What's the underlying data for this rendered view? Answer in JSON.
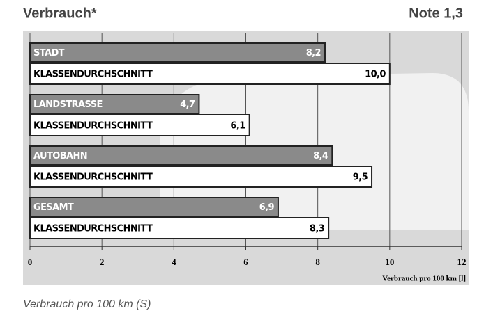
{
  "chart_data": {
    "type": "bar",
    "orientation": "horizontal",
    "title": "Verbrauch*",
    "note": "Note 1,3",
    "categories": [
      "STADT",
      "LANDSTRASSE",
      "AUTOBAHN",
      "GESAMT"
    ],
    "series": [
      {
        "color": "#8a8a8a",
        "values": [
          8.2,
          4.7,
          8.4,
          6.9
        ],
        "value_labels": [
          "8,2",
          "4,7",
          "8,4",
          "6,9"
        ]
      },
      {
        "name": "KLASSENDURCHSCHNITT",
        "color": "#ffffff",
        "values": [
          10,
          6.1,
          9.5,
          8.3
        ],
        "value_labels": [
          "10,0",
          "6,1",
          "9,5",
          "8,3"
        ]
      }
    ],
    "xlim": [
      0,
      12
    ],
    "xticks": [
      0,
      2,
      4,
      6,
      8,
      10,
      12
    ],
    "grid": true,
    "x_label": "Verbrauch pro 100 km [l]",
    "caption": "Verbrauch pro 100 km (S)"
  }
}
